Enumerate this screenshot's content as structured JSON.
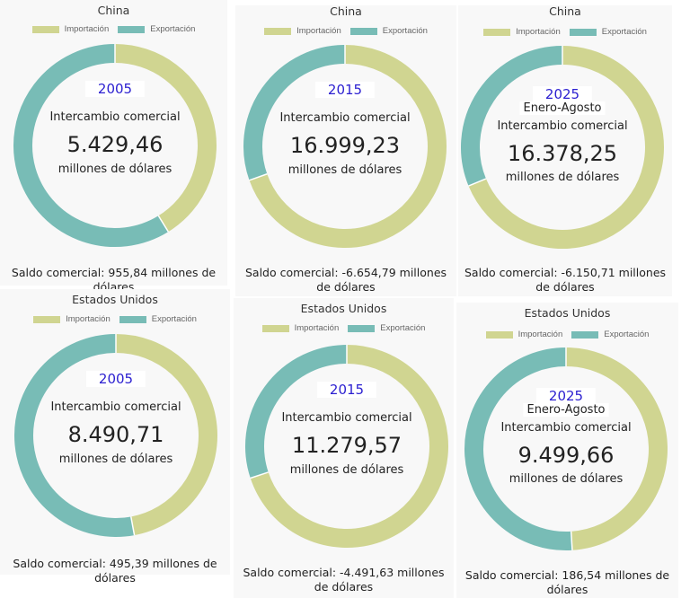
{
  "colors": {
    "importacion": "#d0d591",
    "exportacion": "#78bcb6",
    "year": "#2b1fd0"
  },
  "chart_data": [
    {
      "type": "pie",
      "title": "China",
      "year": "2005",
      "period": "",
      "center_label": "Intercambio comercial",
      "total": "5.429,46",
      "unit": "millones de dólares",
      "saldo": "Saldo comercial: 955,84 millones de dólares",
      "legend": [
        "Importación",
        "Exportación"
      ],
      "values": [
        2236.81,
        3192.65
      ]
    },
    {
      "type": "pie",
      "title": "China",
      "year": "2015",
      "period": "",
      "center_label": "Intercambio comercial",
      "total": "16.999,23",
      "unit": "millones de dólares",
      "saldo": "Saldo comercial: -6.654,79 millones de dólares",
      "legend": [
        "Importación",
        "Exportación"
      ],
      "values": [
        11827.01,
        5172.22
      ]
    },
    {
      "type": "pie",
      "title": "China",
      "year": "2025",
      "period": "Enero-Agosto",
      "center_label": "Intercambio comercial",
      "total": "16.378,25",
      "unit": "millones de dólares",
      "saldo": "Saldo comercial: -6.150,71 millones de dólares",
      "legend": [
        "Importación",
        "Exportación"
      ],
      "values": [
        11264.48,
        5113.77
      ]
    },
    {
      "type": "pie",
      "title": "Estados Unidos",
      "year": "2005",
      "period": "",
      "center_label": "Intercambio comercial",
      "total": "8.490,71",
      "unit": "millones de dólares",
      "saldo": "Saldo comercial: 495,39 millones de dólares",
      "legend": [
        "Importación",
        "Exportación"
      ],
      "values": [
        3997.66,
        4493.05
      ]
    },
    {
      "type": "pie",
      "title": "Estados Unidos",
      "year": "2015",
      "period": "",
      "center_label": "Intercambio comercial",
      "total": "11.279,57",
      "unit": "millones de dólares",
      "saldo": "Saldo comercial: -4.491,63 millones de dólares",
      "legend": [
        "Importación",
        "Exportación"
      ],
      "values": [
        7885.6,
        3393.97
      ]
    },
    {
      "type": "pie",
      "title": "Estados Unidos",
      "year": "2025",
      "period": "Enero-Agosto",
      "center_label": "Intercambio comercial",
      "total": "9.499,66",
      "unit": "millones de dólares",
      "saldo": "Saldo comercial: 186,54 millones de dólares",
      "legend": [
        "Importación",
        "Exportación"
      ],
      "values": [
        4656.56,
        4843.1
      ]
    }
  ]
}
